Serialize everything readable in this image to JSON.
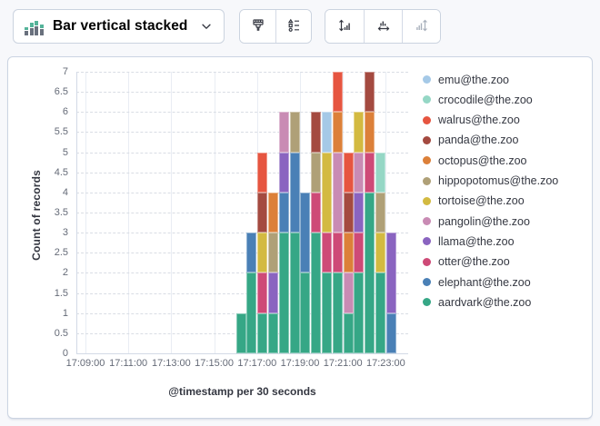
{
  "toolbar": {
    "chart_type": {
      "label": "Bar vertical stacked"
    },
    "buttons": [
      {
        "id": "visual-options",
        "icon": "brush-icon",
        "disabled": false
      },
      {
        "id": "legend-settings",
        "icon": "legend-settings-icon",
        "disabled": false
      },
      {
        "id": "left-axis",
        "icon": "left-axis-icon",
        "disabled": false
      },
      {
        "id": "bottom-axis",
        "icon": "bottom-axis-icon",
        "disabled": false
      },
      {
        "id": "right-axis",
        "icon": "right-axis-icon",
        "disabled": true
      }
    ]
  },
  "chart_data": {
    "type": "bar",
    "stacked": true,
    "orientation": "vertical",
    "title": "",
    "xlabel": "@timestamp per 30 seconds",
    "ylabel": "Count of records",
    "ylim": [
      0,
      7
    ],
    "ytick_step": 0.5,
    "grid": true,
    "legend_position": "right",
    "x_axis_tick_labels": [
      "17:09:00",
      "17:11:00",
      "17:13:00",
      "17:15:00",
      "17:17:00",
      "17:19:00",
      "17:21:00",
      "17:23:00"
    ],
    "bucket_interval_seconds": 30,
    "buckets": [
      "17:16:00",
      "17:16:30",
      "17:17:00",
      "17:17:30",
      "17:18:00",
      "17:18:30",
      "17:19:00",
      "17:19:30",
      "17:20:00",
      "17:20:30",
      "17:21:00",
      "17:21:30",
      "17:22:00",
      "17:22:30",
      "17:23:00"
    ],
    "bucket_totals": [
      1,
      3,
      5,
      4,
      6,
      6,
      4,
      6,
      6,
      7,
      5,
      6,
      7,
      5,
      3
    ],
    "series": [
      {
        "name": "aardvark@the.zoo",
        "color": "#36a786",
        "values": [
          1,
          2,
          1,
          1,
          3,
          3,
          2,
          3,
          2,
          2,
          1,
          2,
          4,
          2,
          0
        ]
      },
      {
        "name": "elephant@the.zoo",
        "color": "#4a80b6",
        "values": [
          0,
          1,
          0,
          0,
          1,
          2,
          2,
          0,
          0,
          0,
          0,
          0,
          0,
          0,
          1
        ]
      },
      {
        "name": "otter@the.zoo",
        "color": "#ce4a77",
        "values": [
          0,
          0,
          1,
          0,
          0,
          0,
          0,
          1,
          1,
          1,
          0,
          1,
          1,
          0,
          0
        ]
      },
      {
        "name": "llama@the.zoo",
        "color": "#8a64c0",
        "values": [
          0,
          0,
          0,
          1,
          1,
          0,
          0,
          0,
          0,
          0,
          0,
          1,
          0,
          0,
          2
        ]
      },
      {
        "name": "pangolin@the.zoo",
        "color": "#c98bb4",
        "values": [
          0,
          0,
          0,
          0,
          1,
          0,
          0,
          0,
          0,
          2,
          1,
          1,
          0,
          0,
          0
        ]
      },
      {
        "name": "tortoise@the.zoo",
        "color": "#d3ba41",
        "values": [
          0,
          0,
          1,
          0,
          0,
          0,
          0,
          0,
          2,
          0,
          0,
          1,
          0,
          1,
          0
        ]
      },
      {
        "name": "hippopotomus@the.zoo",
        "color": "#afa077",
        "values": [
          0,
          0,
          0,
          1,
          0,
          1,
          0,
          1,
          0,
          0,
          0,
          0,
          0,
          1,
          0
        ]
      },
      {
        "name": "octopus@the.zoo",
        "color": "#dc8039",
        "values": [
          0,
          0,
          0,
          1,
          0,
          0,
          0,
          0,
          0,
          1,
          1,
          0,
          1,
          0,
          0
        ]
      },
      {
        "name": "panda@the.zoo",
        "color": "#a44a40",
        "values": [
          0,
          0,
          1,
          0,
          0,
          0,
          0,
          1,
          0,
          0,
          1,
          0,
          1,
          0,
          0
        ]
      },
      {
        "name": "walrus@the.zoo",
        "color": "#e65540",
        "values": [
          0,
          0,
          1,
          0,
          0,
          0,
          0,
          0,
          0,
          1,
          1,
          0,
          0,
          0,
          0
        ]
      },
      {
        "name": "crocodile@the.zoo",
        "color": "#95d7c5",
        "values": [
          0,
          0,
          0,
          0,
          0,
          0,
          0,
          0,
          0,
          0,
          0,
          0,
          0,
          1,
          0
        ]
      },
      {
        "name": "emu@the.zoo",
        "color": "#a5c9e7",
        "values": [
          0,
          0,
          0,
          0,
          0,
          0,
          0,
          0,
          1,
          0,
          0,
          0,
          0,
          0,
          0
        ]
      }
    ],
    "legend_items_top_to_bottom": [
      "emu@the.zoo",
      "crocodile@the.zoo",
      "walrus@the.zoo",
      "panda@the.zoo",
      "octopus@the.zoo",
      "hippopotomus@the.zoo",
      "tortoise@the.zoo",
      "pangolin@the.zoo",
      "llama@the.zoo",
      "otter@the.zoo",
      "elephant@the.zoo",
      "aardvark@the.zoo"
    ]
  }
}
